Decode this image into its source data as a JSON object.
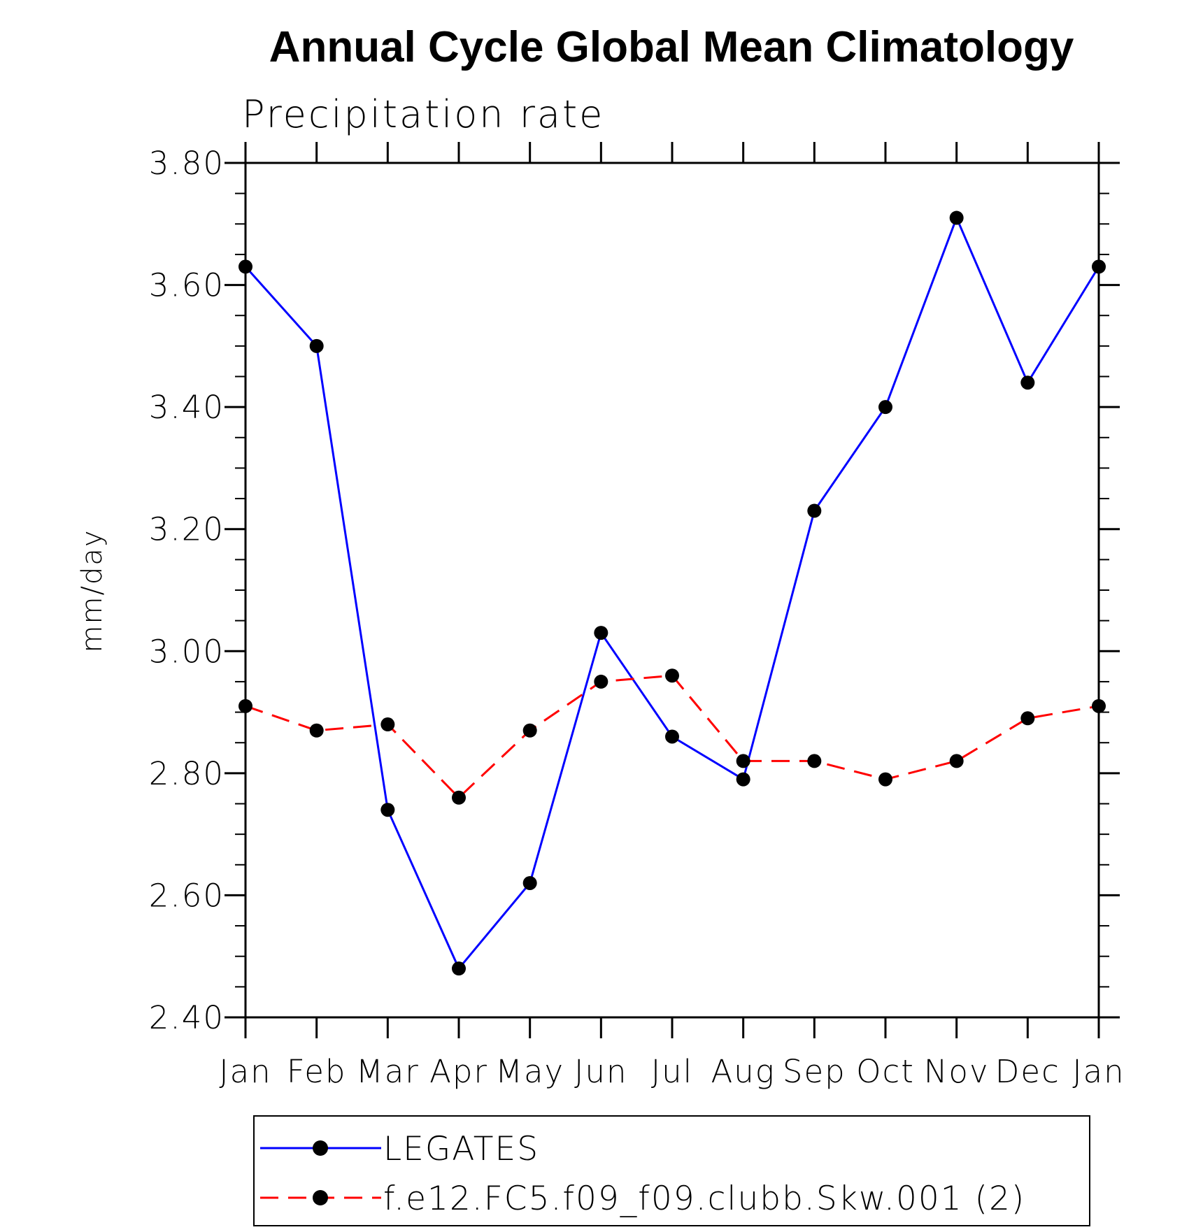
{
  "chart_data": {
    "type": "line",
    "title": "Annual Cycle Global Mean Climatology",
    "subtitle": "Precipitation rate",
    "xlabel": "",
    "ylabel": "mm/day",
    "categories": [
      "Jan",
      "Feb",
      "Mar",
      "Apr",
      "May",
      "Jun",
      "Jul",
      "Aug",
      "Sep",
      "Oct",
      "Nov",
      "Dec",
      "Jan"
    ],
    "ylim": [
      2.4,
      3.8
    ],
    "yticks": [
      "2.40",
      "2.60",
      "2.80",
      "3.00",
      "3.20",
      "3.40",
      "3.60",
      "3.80"
    ],
    "grid": false,
    "legend_position": "bottom",
    "series": [
      {
        "name": "LEGATES",
        "color": "#0000ff",
        "dash": "solid",
        "marker": "filled-circle",
        "values": [
          3.63,
          3.5,
          2.74,
          2.48,
          2.62,
          3.03,
          2.86,
          2.79,
          3.23,
          3.4,
          3.71,
          3.44,
          3.63
        ]
      },
      {
        "name": "f.e12.FC5.f09_f09.clubb.Skw.001 (2)",
        "color": "#ff0000",
        "dash": "dashed",
        "marker": "filled-circle",
        "values": [
          2.91,
          2.87,
          2.88,
          2.76,
          2.87,
          2.95,
          2.96,
          2.82,
          2.82,
          2.79,
          2.82,
          2.89,
          2.91
        ]
      }
    ]
  }
}
